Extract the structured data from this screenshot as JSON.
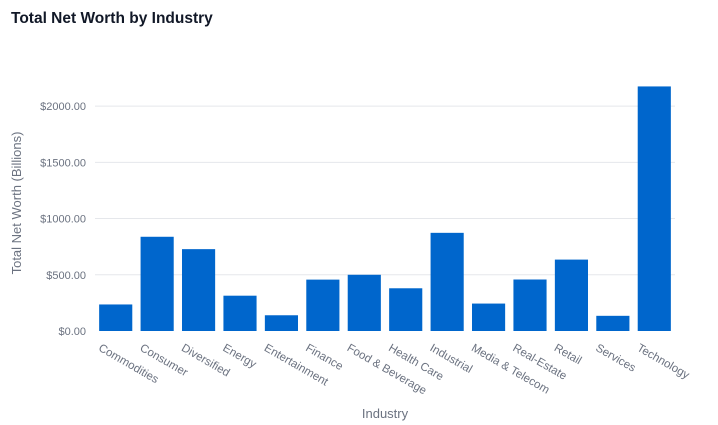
{
  "chart_data": {
    "type": "bar",
    "title": "Total Net Worth by Industry",
    "xlabel": "Industry",
    "ylabel": "Total Net Worth (Billions)",
    "categories": [
      "Commodities",
      "Consumer",
      "Diversified",
      "Energy",
      "Entertainment",
      "Finance",
      "Food & Beverage",
      "Health Care",
      "Industrial",
      "Media & Telecom",
      "Real-Estate",
      "Retail",
      "Services",
      "Technology"
    ],
    "values": [
      236,
      838,
      728,
      314,
      140,
      457,
      500,
      380,
      873,
      244,
      458,
      635,
      135,
      2175
    ],
    "ylim": [
      0,
      2250
    ],
    "yticks": [
      0,
      500,
      1000,
      1500,
      2000
    ],
    "ytick_labels": [
      "$0.00",
      "$500.00",
      "$1000.00",
      "$1500.00",
      "$2000.00"
    ],
    "grid": true,
    "bar_color": "#0066cc",
    "grid_color": "#e5e7eb"
  }
}
